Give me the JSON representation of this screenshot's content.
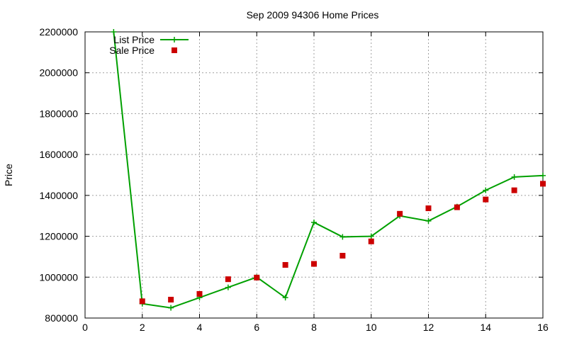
{
  "chart_data": {
    "type": "line",
    "title": "Sep 2009 94306 Home Prices",
    "xlabel": "",
    "ylabel": "Price",
    "xlim": [
      0,
      16
    ],
    "ylim": [
      800000,
      2200000
    ],
    "x_ticks": [
      0,
      2,
      4,
      6,
      8,
      10,
      12,
      14,
      16
    ],
    "y_ticks": [
      800000,
      1000000,
      1200000,
      1400000,
      1600000,
      1800000,
      2000000,
      2200000
    ],
    "grid": true,
    "legend_position": "top-left",
    "series": [
      {
        "name": "List Price",
        "kind": "line-points",
        "marker": "plus",
        "color": "#00a000",
        "x": [
          1,
          2,
          3,
          4,
          5,
          6,
          7,
          8,
          9,
          10,
          11,
          12,
          13,
          14,
          15,
          16
        ],
        "values": [
          2200000,
          870000,
          850000,
          900000,
          950000,
          1000000,
          900000,
          1268000,
          1197000,
          1200000,
          1300000,
          1275000,
          1345000,
          1425000,
          1490000,
          1497000
        ]
      },
      {
        "name": "Sale Price",
        "kind": "points",
        "marker": "square",
        "color": "#cc0000",
        "x": [
          2,
          3,
          4,
          5,
          6,
          7,
          8,
          9,
          10,
          11,
          12,
          13,
          14,
          15,
          16
        ],
        "values": [
          882000,
          890000,
          918000,
          990000,
          998000,
          1060000,
          1065000,
          1105000,
          1175000,
          1310000,
          1337000,
          1342000,
          1380000,
          1425000,
          1457000
        ]
      }
    ]
  }
}
